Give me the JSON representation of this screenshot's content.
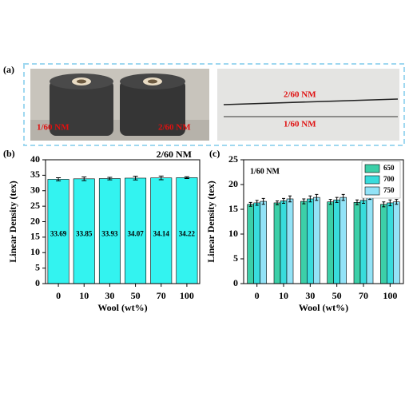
{
  "figure": {
    "panel_labels": [
      "(a)",
      "(b)",
      "(c)"
    ],
    "photo_left": {
      "labels": [
        "1/60 NM",
        "2/60 NM"
      ]
    },
    "photo_right": {
      "labels": [
        "2/60 NM",
        "1/60 NM"
      ]
    }
  },
  "chart_data": [
    {
      "type": "bar",
      "annotation": "2/60 NM",
      "x_label": "Wool (wt%)",
      "y_label": "Linear Density (tex)",
      "categories": [
        "0",
        "10",
        "30",
        "50",
        "70",
        "100"
      ],
      "values": [
        33.69,
        33.85,
        33.93,
        34.07,
        34.14,
        34.22
      ],
      "errors": [
        0.5,
        0.6,
        0.4,
        0.6,
        0.6,
        0.3
      ],
      "color": "#33f3f0",
      "ylim": [
        0,
        40
      ],
      "yticks": [
        0,
        5,
        10,
        15,
        20,
        25,
        30,
        35,
        40
      ]
    },
    {
      "type": "bar",
      "annotation": "1/60 NM",
      "x_label": "Wool (wt%)",
      "y_label": "Linear Density (tex)",
      "categories": [
        "0",
        "10",
        "30",
        "50",
        "70",
        "100"
      ],
      "series": [
        {
          "name": "650",
          "color": "#3ccfa8",
          "values": [
            16.0,
            16.3,
            16.6,
            16.5,
            16.4,
            16.0
          ],
          "errors": [
            0.4,
            0.4,
            0.5,
            0.5,
            0.5,
            0.5
          ]
        },
        {
          "name": "700",
          "color": "#38dcdc",
          "values": [
            16.3,
            16.7,
            17.1,
            16.9,
            16.8,
            16.3
          ],
          "errors": [
            0.5,
            0.5,
            0.6,
            0.5,
            0.6,
            0.6
          ]
        },
        {
          "name": "750",
          "color": "#93e3f7",
          "values": [
            16.6,
            17.1,
            17.4,
            17.4,
            17.6,
            16.5
          ],
          "errors": [
            0.6,
            0.6,
            0.6,
            0.6,
            0.6,
            0.5
          ]
        }
      ],
      "legend": "upper right",
      "ylim": [
        0,
        25
      ],
      "yticks": [
        0,
        5,
        10,
        15,
        20,
        25
      ]
    }
  ]
}
